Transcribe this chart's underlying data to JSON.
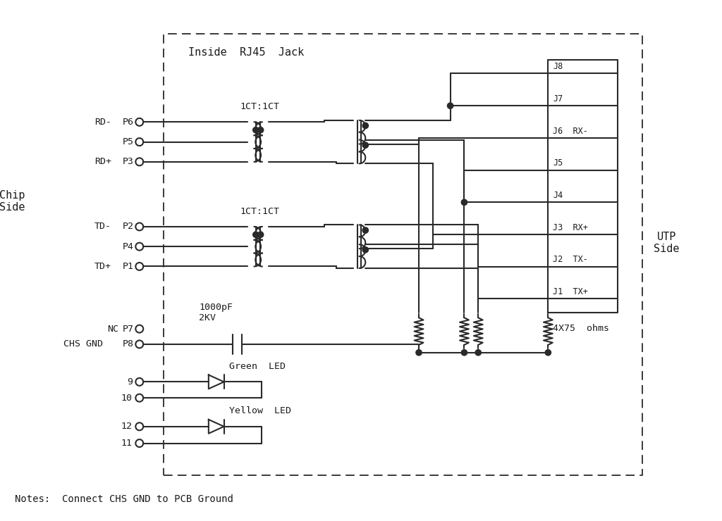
{
  "bg_color": "#ffffff",
  "line_color": "#2a2a2a",
  "text_color": "#1a1a1a",
  "notes": "Notes:  Connect CHS GND to PCB Ground",
  "inside_label": "Inside  RJ45  Jack",
  "chip_side_label": "Chip\nSide",
  "utp_side_label": "UTP\nSide",
  "transformer1_label": "1CT:1CT",
  "transformer2_label": "1CT:1CT",
  "cap_label": "1000pF\n2KV",
  "resistor_label": "4X75  ohms",
  "green_led_label": "Green  LED",
  "yellow_led_label": "Yellow  LED",
  "j_labels": [
    "J8",
    "J7",
    "J6  RX-",
    "J5",
    "J4",
    "J3  RX+",
    "J2  TX-",
    "J1  TX+"
  ]
}
